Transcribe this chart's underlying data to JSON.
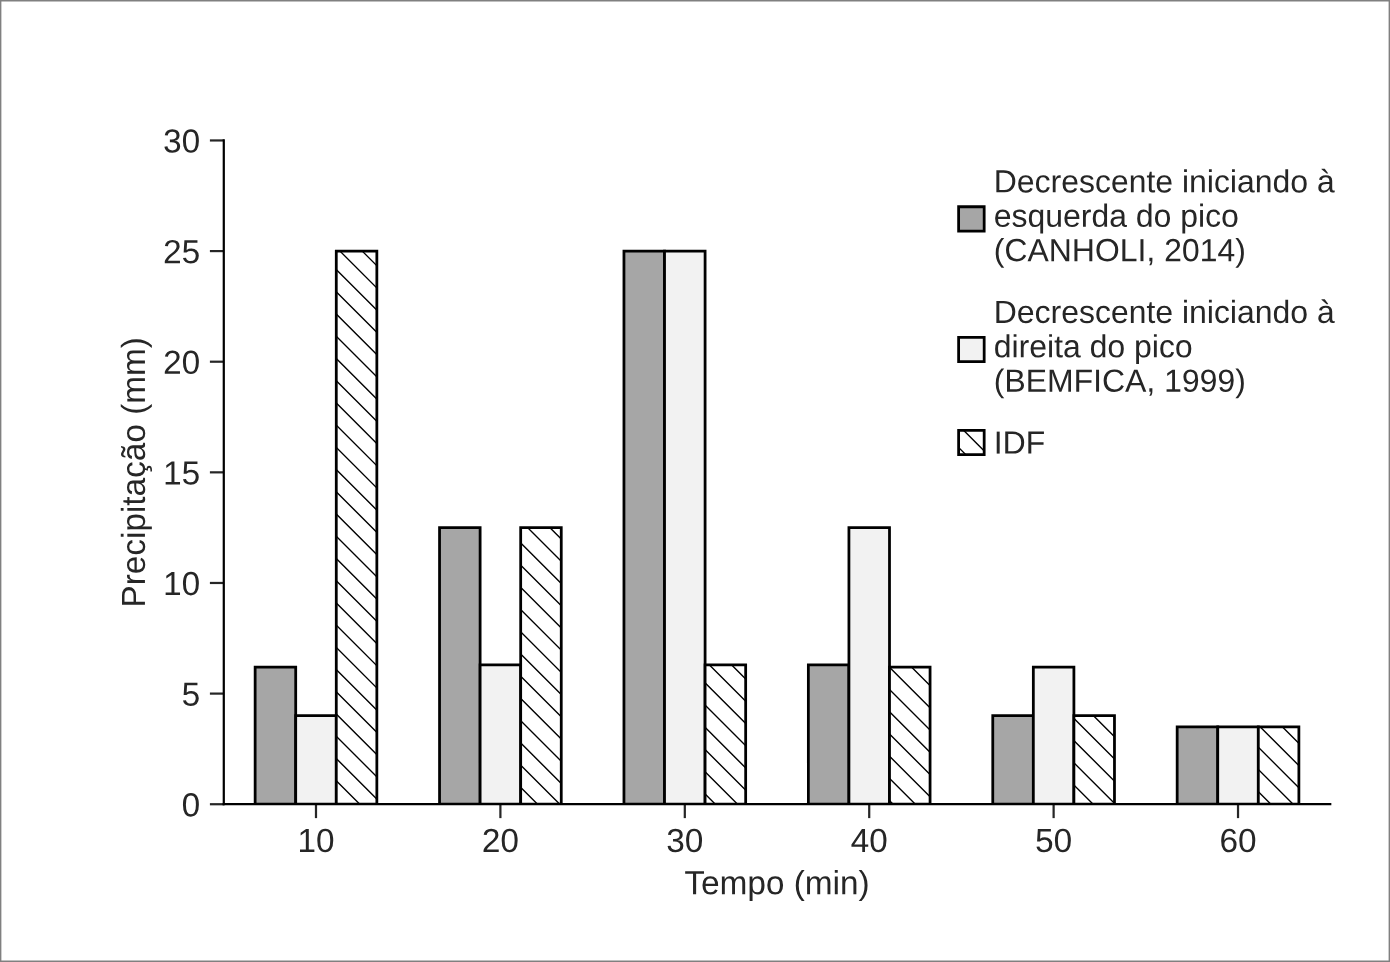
{
  "chart_data": {
    "type": "bar",
    "xlabel": "Tempo (min)",
    "ylabel": "Precipitação (mm)",
    "categories": [
      "10",
      "20",
      "30",
      "40",
      "50",
      "60"
    ],
    "series": [
      {
        "name": "Decrescente iniciando à\nesquerda do pico\n(CANHOLI, 2014)",
        "color": "#a6a6a6",
        "values": [
          6.2,
          12.5,
          25,
          6.3,
          4.0,
          3.5
        ]
      },
      {
        "name": "Decrescente iniciando à\ndireita do pico\n(BEMFICA, 1999)",
        "color": "#f2f2f2",
        "values": [
          4.0,
          6.3,
          25,
          12.5,
          6.2,
          3.5
        ]
      },
      {
        "name": "IDF",
        "color": "#000000",
        "values": [
          25,
          12.5,
          6.3,
          6.2,
          4.0,
          3.5
        ]
      }
    ],
    "ylim": [
      0,
      30
    ],
    "yticks": [
      0,
      5,
      10,
      15,
      20,
      25,
      30
    ],
    "grid": false,
    "legend": "top right"
  }
}
